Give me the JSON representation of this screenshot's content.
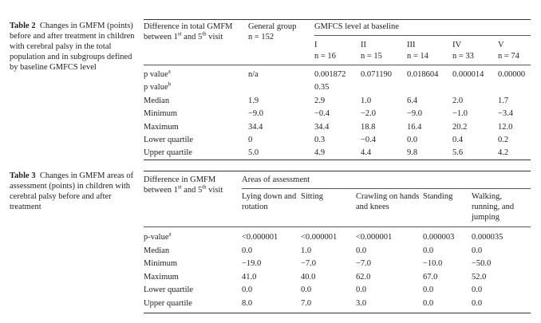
{
  "table2": {
    "caption": {
      "label": "Table 2",
      "text": "Changes in GMFM (points) before and after treatment in children with cerebral palsy in the total population and in subgroups defined by baseline GMFCS level"
    },
    "header": {
      "stub": [
        "Difference in total GMFM between 1",
        "st",
        " and 5",
        "th",
        " visit"
      ],
      "general": {
        "title": "General group",
        "n": "n = 152"
      },
      "group_title": "GMFCS level at baseline",
      "levels": [
        {
          "title": "I",
          "n": "n = 16"
        },
        {
          "title": "II",
          "n": "n = 15"
        },
        {
          "title": "III",
          "n": "n = 14"
        },
        {
          "title": "IV",
          "n": "n = 33"
        },
        {
          "title": "V",
          "n": "n = 74"
        }
      ]
    },
    "rows": [
      {
        "label": "p value",
        "sup": "a",
        "cells": [
          "n/a",
          "0.001872",
          "0.071190",
          "0.018604",
          "0.000014",
          "0.00000"
        ]
      },
      {
        "label": "p value",
        "sup": "b",
        "cells": [
          null,
          "0.35",
          null,
          null,
          null,
          null
        ]
      },
      {
        "label": "Median",
        "cells": [
          "1.9",
          "2.9",
          "1.0",
          "6.4",
          "2.0",
          "1.7"
        ]
      },
      {
        "label": "Minimum",
        "cells": [
          "−9.0",
          "−0.4",
          "−2.0",
          "−9.0",
          "−1.0",
          "−3.4"
        ]
      },
      {
        "label": "Maximum",
        "cells": [
          "34.4",
          "34.4",
          "18.8",
          "16.4",
          "20.2",
          "12.0"
        ]
      },
      {
        "label": "Lower quartile",
        "cells": [
          "0",
          "0.3",
          "−0.4",
          "0.0",
          "0.4",
          "0.2"
        ]
      },
      {
        "label": "Upper quartile",
        "cells": [
          "5.0",
          "4.9",
          "4.4",
          "9.8",
          "5.6",
          "4.2"
        ]
      }
    ]
  },
  "table3": {
    "caption": {
      "label": "Table 3",
      "text": "Changes in GMFM areas of assessment (points) in children with cerebral palsy before and after treatment"
    },
    "header": {
      "stub": [
        "Difference in GMFM between 1",
        "st",
        " and 5",
        "th",
        " visit"
      ],
      "group_title": "Areas of assessment",
      "areas": [
        "Lying down and rotation",
        "Sitting",
        "Crawling on hands and knees",
        "Standing",
        "Walking, running, and jumping"
      ]
    },
    "rows": [
      {
        "label": "p-value",
        "sup": "a",
        "cells": [
          "<0.000001",
          "<0.000001",
          "<0.000001",
          "0.000003",
          "0.000035"
        ]
      },
      {
        "label": "Median",
        "cells": [
          "0.0",
          "1.0",
          "0.0",
          "0.0",
          "0.0"
        ]
      },
      {
        "label": "Minimum",
        "cells": [
          "−19.0",
          "−7.0",
          "−7.0",
          "−10.0",
          "−50.0"
        ]
      },
      {
        "label": "Maximum",
        "cells": [
          "41.0",
          "40.0",
          "62.0",
          "67.0",
          "52.0"
        ]
      },
      {
        "label": "Lower quartile",
        "cells": [
          "0.0",
          "0.0",
          "0.0",
          "0.0",
          "0.0"
        ]
      },
      {
        "label": "Upper quartile",
        "cells": [
          "8.0",
          "7.0",
          "3.0",
          "0.0",
          "0.0"
        ]
      }
    ]
  }
}
